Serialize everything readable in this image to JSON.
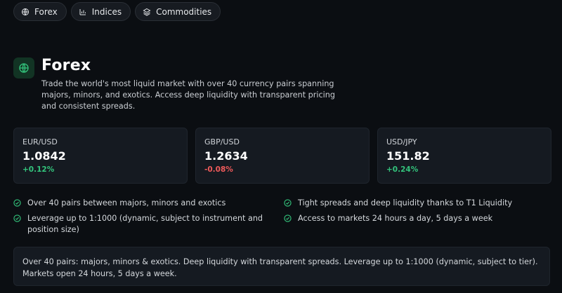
{
  "tabs": [
    {
      "label": "Forex",
      "icon": "globe-icon"
    },
    {
      "label": "Indices",
      "icon": "bar-chart-icon"
    },
    {
      "label": "Commodities",
      "icon": "layers-icon"
    }
  ],
  "hero": {
    "icon": "globe-icon",
    "title": "Forex",
    "description": "Trade the world's most liquid market with over 40 currency pairs spanning majors, minors, and exotics. Access deep liquidity with transparent pricing and consistent spreads."
  },
  "quotes": [
    {
      "pair": "EUR/USD",
      "price": "1.0842",
      "change": "+0.12%",
      "direction": "up"
    },
    {
      "pair": "GBP/USD",
      "price": "1.2634",
      "change": "-0.08%",
      "direction": "down"
    },
    {
      "pair": "USD/JPY",
      "price": "151.82",
      "change": "+0.24%",
      "direction": "up"
    }
  ],
  "features": [
    "Over 40 pairs between majors, minors and exotics",
    "Leverage up to 1:1000 (dynamic, subject to instrument and position size)",
    "Tight spreads and deep liquidity thanks to T1 Liquidity",
    "Access to markets 24 hours a day, 5 days a week"
  ],
  "summary": "Over 40 pairs: majors, minors & exotics. Deep liquidity with transparent spreads. Leverage up to 1:1000 (dynamic, subject to tier). Markets open 24 hours, 5 days a week.",
  "colors": {
    "background": "#0b0e12",
    "accent_green": "#33c47c",
    "negative_red": "#ef5a5a",
    "card_bg": "#151a21"
  }
}
